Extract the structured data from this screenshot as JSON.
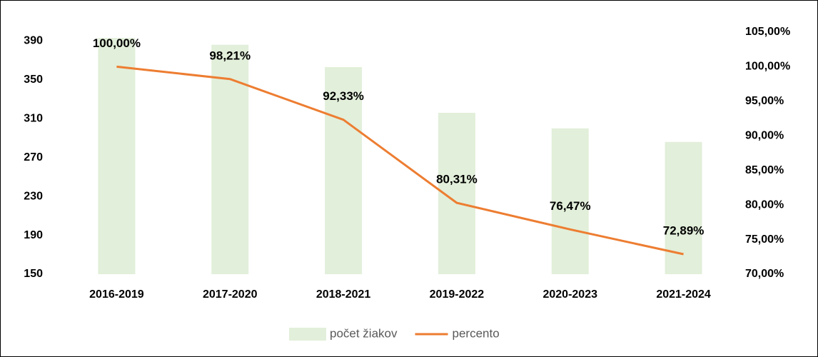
{
  "chart_data": {
    "type": "bar-line",
    "categories": [
      "2016-2019",
      "2017-2020",
      "2018-2021",
      "2019-2022",
      "2020-2023",
      "2021-2024"
    ],
    "series": [
      {
        "name": "počet žiakov",
        "type": "bar",
        "color": "#e2efda",
        "values": [
          393,
          386,
          363,
          316,
          300,
          286
        ]
      },
      {
        "name": "percento",
        "type": "line",
        "axis": "y2",
        "color": "#ed7d31",
        "values": [
          100,
          98.21,
          92.33,
          80.31,
          76.47,
          72.89
        ],
        "value_labels": [
          "100,00%",
          "98,21%",
          "92,33%",
          "80,31%",
          "76,47%",
          "72,89%"
        ]
      }
    ],
    "ylim": [
      150,
      399
    ],
    "yticks": [
      150,
      190,
      230,
      270,
      310,
      350,
      390
    ],
    "y2lim": [
      70,
      105
    ],
    "y2ticks": [
      {
        "value": 70,
        "label": "70,00%"
      },
      {
        "value": 75,
        "label": "75,00%"
      },
      {
        "value": 80,
        "label": "80,00%"
      },
      {
        "value": 85,
        "label": "85,00%"
      },
      {
        "value": 90,
        "label": "90,00%"
      },
      {
        "value": 95,
        "label": "95,00%"
      },
      {
        "value": 100,
        "label": "100,00%"
      },
      {
        "value": 105,
        "label": "105,00%"
      }
    ],
    "grid": false,
    "legend": "bottom"
  }
}
